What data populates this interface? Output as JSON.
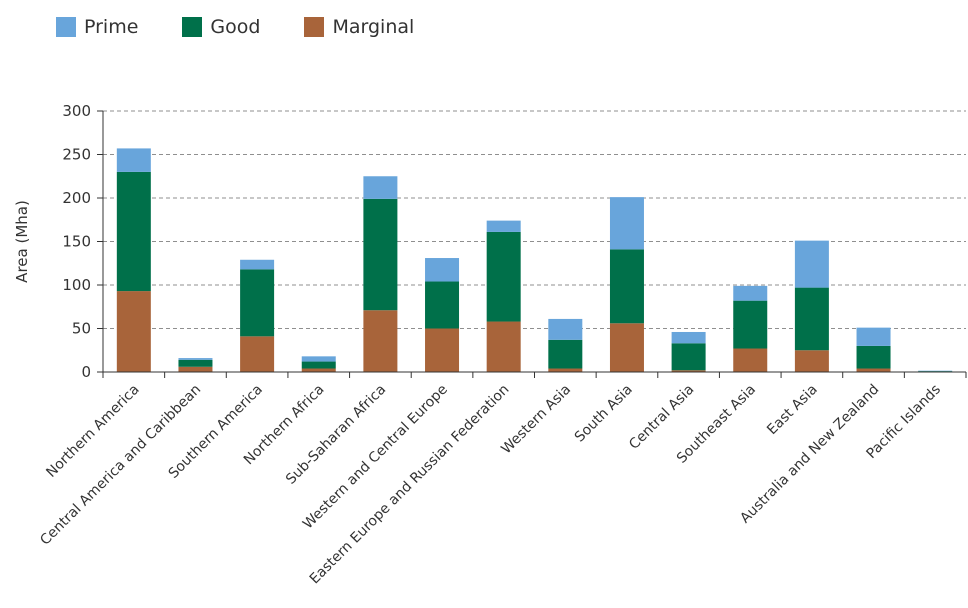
{
  "chart_data": {
    "type": "bar",
    "stacked": true,
    "title": "",
    "xlabel": "",
    "ylabel": "Area (Mha)",
    "ylim": [
      0,
      300
    ],
    "yticks": [
      "0",
      "50",
      "100",
      "150",
      "200",
      "250",
      "300"
    ],
    "grid": true,
    "legend_position": "top-left",
    "categories": [
      "Northern America",
      "Central America and Caribbean",
      "Southern America",
      "Northern Africa",
      "Sub-Saharan Africa",
      "Western and Central Europe",
      "Eastern Europe and Russian Federation",
      "Western Asia",
      "South Asia",
      "Central Asia",
      "Southeast Asia",
      "East Asia",
      "Australia and New Zealand",
      "Pacific Islands"
    ],
    "series": [
      {
        "name": "Marginal",
        "color": "#a8643a",
        "values": [
          93,
          6,
          41,
          4,
          71,
          50,
          58,
          4,
          56,
          2,
          27,
          25,
          4,
          0.5
        ]
      },
      {
        "name": "Good",
        "color": "#00704a",
        "values": [
          137,
          8,
          77,
          8,
          128,
          54,
          103,
          33,
          85,
          31,
          55,
          72,
          26,
          0.5
        ]
      },
      {
        "name": "Prime",
        "color": "#68a5db",
        "values": [
          27,
          2,
          11,
          6,
          26,
          27,
          13,
          24,
          60,
          13,
          17,
          54,
          21,
          0.5
        ]
      }
    ]
  },
  "legend": [
    {
      "label": "Prime",
      "color": "#68a5db"
    },
    {
      "label": "Good",
      "color": "#00704a"
    },
    {
      "label": "Marginal",
      "color": "#a8643a"
    }
  ]
}
